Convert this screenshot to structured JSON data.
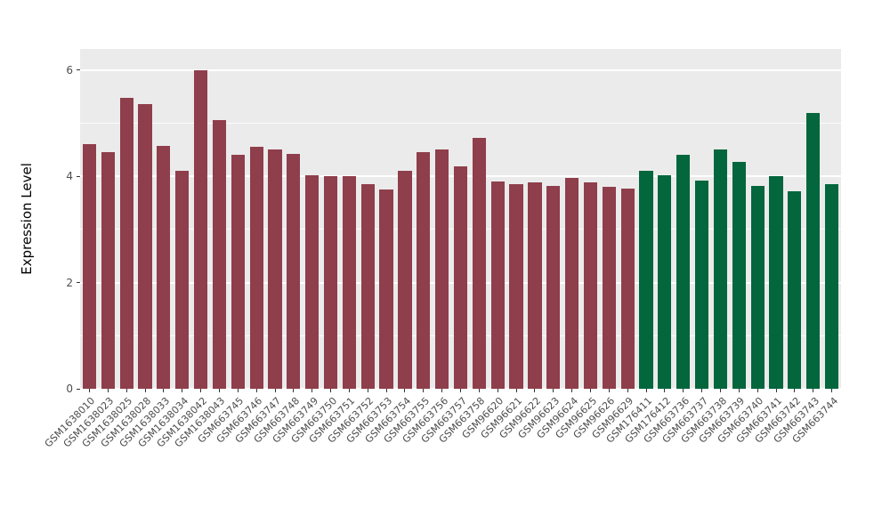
{
  "chart_data": {
    "type": "bar",
    "title": "",
    "xlabel": "",
    "ylabel": "Expression Level",
    "ylim": [
      0,
      6.4
    ],
    "yticks": [
      0,
      2,
      4,
      6
    ],
    "yticks_minor": [
      1,
      3,
      5
    ],
    "grid": true,
    "legend_position": "none",
    "panel_bg": "#ebebeb",
    "grid_color": "#ffffff",
    "tick_text_color": "#4d4d4d",
    "group_colors": [
      "#8f3e4b",
      "#03663d"
    ],
    "categories": [
      "GSM1638010",
      "GSM1638023",
      "GSM1638025",
      "GSM1638028",
      "GSM1638033",
      "GSM1638034",
      "GSM1638042",
      "GSM1638043",
      "GSM663745",
      "GSM663746",
      "GSM663747",
      "GSM663748",
      "GSM663749",
      "GSM663750",
      "GSM663751",
      "GSM663752",
      "GSM663753",
      "GSM663754",
      "GSM663755",
      "GSM663756",
      "GSM663757",
      "GSM663758",
      "GSM96620",
      "GSM96621",
      "GSM96622",
      "GSM96623",
      "GSM96624",
      "GSM96625",
      "GSM96626",
      "GSM96629",
      "GSM176411",
      "GSM176412",
      "GSM663736",
      "GSM663737",
      "GSM663738",
      "GSM663739",
      "GSM663740",
      "GSM663741",
      "GSM663742",
      "GSM663743",
      "GSM663744"
    ],
    "values": [
      4.6,
      4.45,
      5.48,
      5.36,
      4.58,
      4.1,
      6.0,
      5.06,
      4.41,
      4.56,
      4.51,
      4.42,
      4.03,
      4.0,
      4.01,
      3.86,
      3.76,
      4.11,
      4.46,
      4.51,
      4.19,
      4.73,
      3.91,
      3.86,
      3.89,
      3.82,
      3.97,
      3.89,
      3.81,
      3.77,
      4.1,
      4.03,
      4.4,
      3.92,
      4.5,
      4.27,
      3.82,
      4.01,
      3.72,
      5.19,
      3.86
    ],
    "group": [
      0,
      0,
      0,
      0,
      0,
      0,
      0,
      0,
      0,
      0,
      0,
      0,
      0,
      0,
      0,
      0,
      0,
      0,
      0,
      0,
      0,
      0,
      0,
      0,
      0,
      0,
      0,
      0,
      0,
      0,
      1,
      1,
      1,
      1,
      1,
      1,
      1,
      1,
      1,
      1,
      1
    ]
  }
}
